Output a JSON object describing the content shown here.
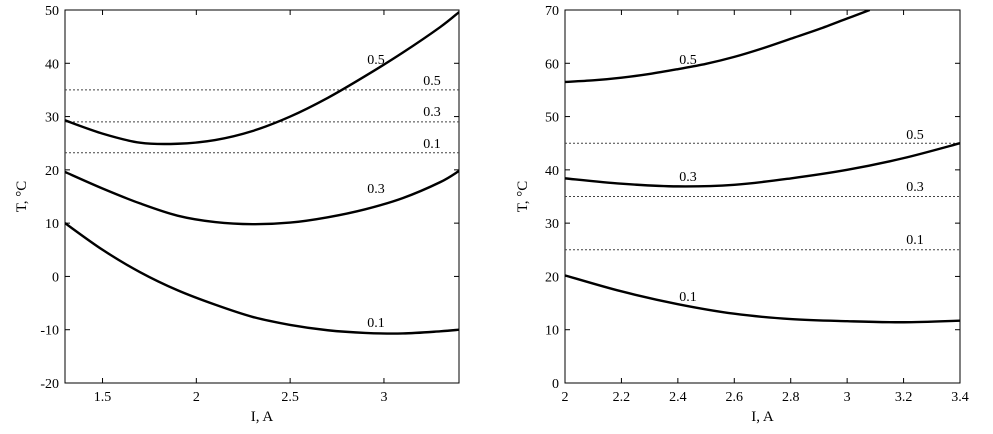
{
  "chart_data": [
    {
      "type": "line",
      "xlabel": "I, A",
      "ylabel": "T, °C",
      "xlim": [
        1.3,
        3.4
      ],
      "ylim": [
        -20,
        50
      ],
      "xticks": [
        1.5,
        2,
        2.5,
        3
      ],
      "xtick_labels": [
        "1.5",
        "2",
        "2.5",
        "3"
      ],
      "yticks": [
        -20,
        -10,
        0,
        10,
        20,
        30,
        40,
        50
      ],
      "ytick_labels": [
        "-20",
        "-10",
        "0",
        "10",
        "20",
        "30",
        "40",
        "50"
      ],
      "grid": false,
      "series": [
        {
          "name": "0.5",
          "x": [
            1.3,
            1.5,
            1.7,
            1.9,
            2.1,
            2.3,
            2.5,
            2.7,
            2.9,
            3.1,
            3.3,
            3.4
          ],
          "y": [
            29.3,
            26.8,
            25.1,
            24.9,
            25.6,
            27.3,
            30.0,
            33.5,
            37.6,
            42.0,
            46.8,
            49.6
          ]
        },
        {
          "name": "0.3",
          "x": [
            1.3,
            1.5,
            1.7,
            1.9,
            2.1,
            2.3,
            2.5,
            2.7,
            2.9,
            3.1,
            3.3,
            3.4
          ],
          "y": [
            19.6,
            16.5,
            13.7,
            11.4,
            10.2,
            9.8,
            10.1,
            11.1,
            12.6,
            14.7,
            17.7,
            19.8
          ]
        },
        {
          "name": "0.1",
          "x": [
            1.3,
            1.5,
            1.7,
            1.9,
            2.1,
            2.3,
            2.5,
            2.7,
            2.9,
            3.1,
            3.3,
            3.4
          ],
          "y": [
            10.0,
            5.0,
            0.8,
            -2.6,
            -5.3,
            -7.6,
            -9.1,
            -10.1,
            -10.6,
            -10.7,
            -10.3,
            -10.0
          ]
        }
      ],
      "reference_lines": [
        {
          "label": "0.5",
          "y": 35.0
        },
        {
          "label": "0.3",
          "y": 29.0
        },
        {
          "label": "0.1",
          "y": 23.2
        }
      ]
    },
    {
      "type": "line",
      "xlabel": "I, A",
      "ylabel": "T, °C",
      "xlim": [
        2.0,
        3.4
      ],
      "ylim": [
        0,
        70
      ],
      "xticks": [
        2,
        2.2,
        2.4,
        2.6,
        2.8,
        3,
        3.2,
        3.4
      ],
      "xtick_labels": [
        "2",
        "2.2",
        "2.4",
        "2.6",
        "2.8",
        "3",
        "3.2",
        "3.4"
      ],
      "yticks": [
        0,
        10,
        20,
        30,
        40,
        50,
        60,
        70
      ],
      "ytick_labels": [
        "0",
        "10",
        "20",
        "30",
        "40",
        "50",
        "60",
        "70"
      ],
      "grid": false,
      "series": [
        {
          "name": "0.5",
          "x": [
            2.0,
            2.1,
            2.2,
            2.3,
            2.4,
            2.5,
            2.6,
            2.7,
            2.8,
            2.9,
            3.0,
            3.08
          ],
          "y": [
            56.5,
            56.8,
            57.3,
            58.0,
            58.9,
            59.9,
            61.2,
            62.8,
            64.6,
            66.4,
            68.4,
            70.0
          ]
        },
        {
          "name": "0.3",
          "x": [
            2.0,
            2.2,
            2.4,
            2.6,
            2.8,
            3.0,
            3.2,
            3.4
          ],
          "y": [
            38.4,
            37.4,
            36.9,
            37.2,
            38.4,
            40.0,
            42.2,
            45.0
          ]
        },
        {
          "name": "0.1",
          "x": [
            2.0,
            2.2,
            2.4,
            2.6,
            2.8,
            3.0,
            3.2,
            3.4
          ],
          "y": [
            20.2,
            17.2,
            14.8,
            13.0,
            12.0,
            11.6,
            11.4,
            11.7
          ]
        }
      ],
      "reference_lines": [
        {
          "label": "0.5",
          "y": 45.0
        },
        {
          "label": "0.3",
          "y": 35.0
        },
        {
          "label": "0.1",
          "y": 25.0
        }
      ]
    }
  ]
}
